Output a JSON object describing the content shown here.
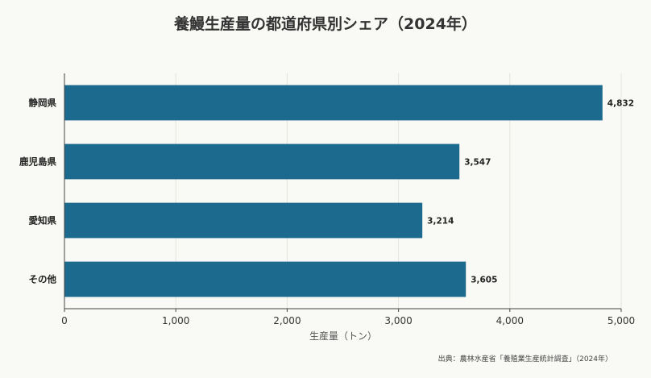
{
  "chart_data": {
    "type": "bar",
    "orientation": "horizontal",
    "title": "養鰻生産量の都道府県別シェア（2024年）",
    "categories": [
      "静岡県",
      "鹿児島県",
      "愛知県",
      "その他"
    ],
    "values": [
      4832,
      3547,
      3214,
      3605
    ],
    "value_labels": [
      "4,832",
      "3,547",
      "3,214",
      "3,605"
    ],
    "xlabel": "生産量（トン）",
    "ylabel": "",
    "xlim": [
      0,
      5000
    ],
    "xticks": [
      0,
      1000,
      2000,
      3000,
      4000,
      5000
    ],
    "xtick_labels": [
      "0",
      "1,000",
      "2,000",
      "3,000",
      "4,000",
      "5,000"
    ],
    "grid": "vertical",
    "bar_color": "#1c6a8e",
    "source": "出典：農林水産省「養殖業生産統計調査」（2024年）"
  }
}
